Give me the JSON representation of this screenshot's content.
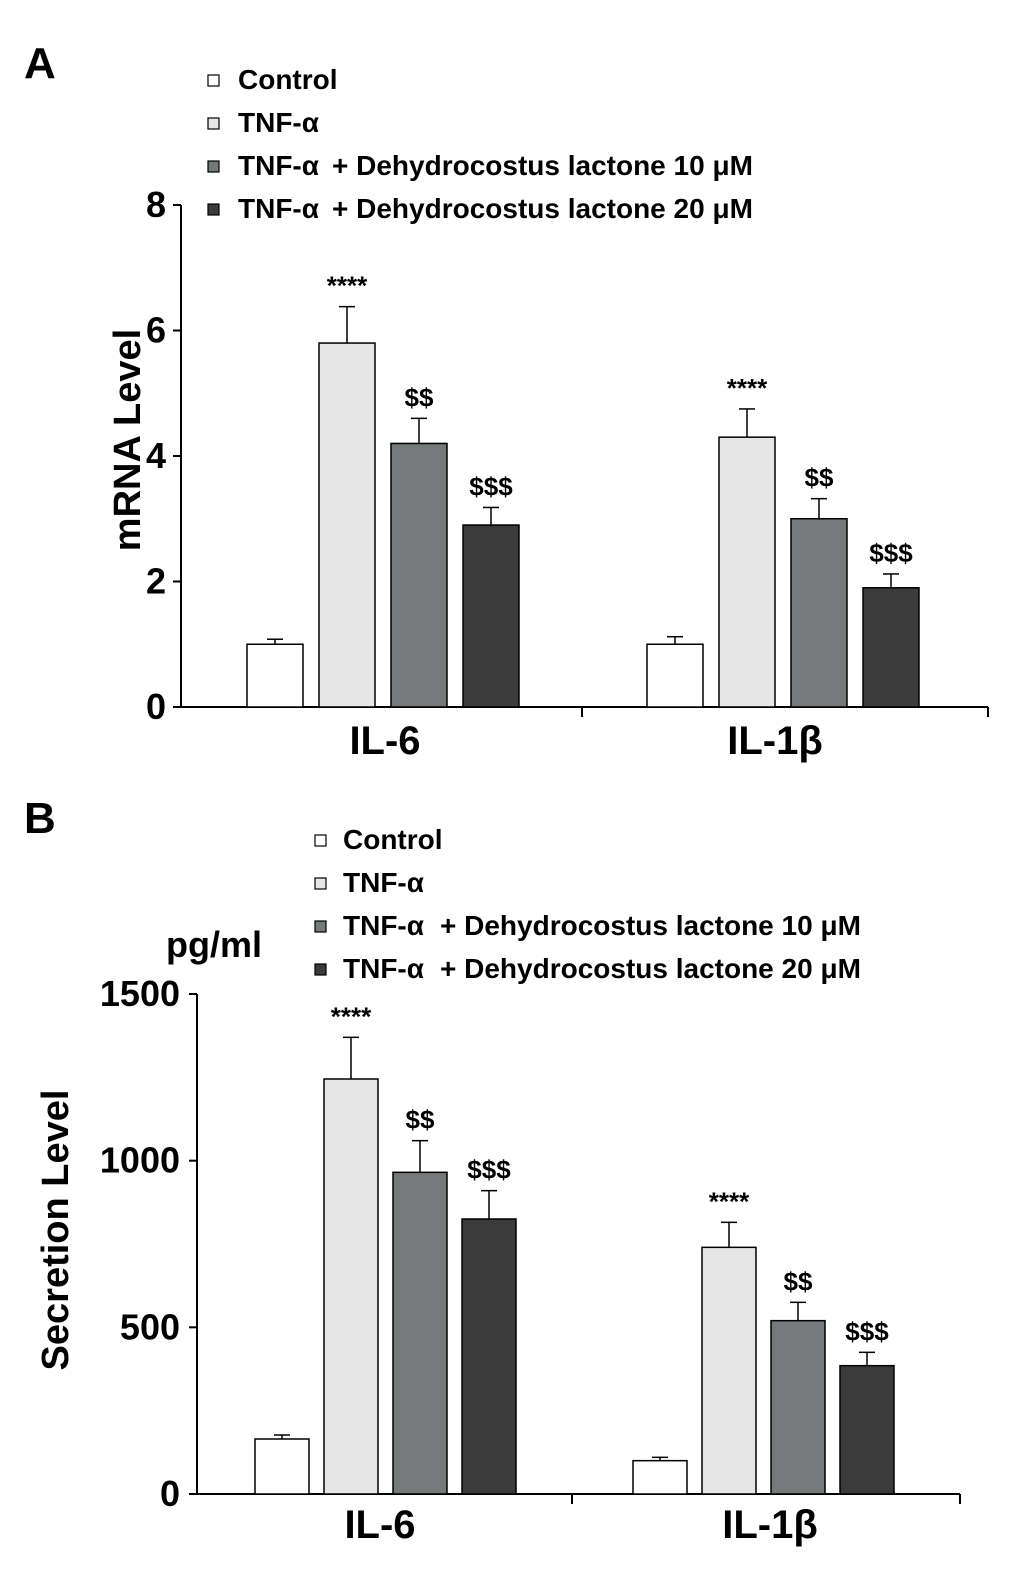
{
  "colors": {
    "Control": "#ffffff",
    "TNF-α": "#e6e6e6",
    "TNF-α + Dehydrocostus lactone 10 μM": "#76797a",
    "TNF-α + Dehydrocostus lactone 20 μM": "#3b3b3b"
  },
  "chart_data": [
    {
      "type": "bar",
      "panel_label": "A",
      "ylabel": "mRNA Level",
      "unit_label": "",
      "ylim": [
        0,
        8
      ],
      "yticks": [
        0,
        2,
        4,
        6,
        8
      ],
      "ytick_labels": [
        "0",
        "2",
        "4",
        "6",
        "8"
      ],
      "categories": [
        "IL-6",
        "IL-1β"
      ],
      "legend": [
        {
          "prefix": "Control",
          "suffix": ""
        },
        {
          "prefix": "TNF-α",
          "suffix": ""
        },
        {
          "prefix": "TNF-α",
          "suffix": "+ Dehydrocostus lactone 10 μM"
        },
        {
          "prefix": "TNF-α",
          "suffix": "+ Dehydrocostus lactone 20 μM"
        }
      ],
      "series": [
        {
          "name": "Control",
          "values": [
            1.0,
            1.0
          ],
          "errors": [
            0.08,
            0.12
          ],
          "annotations": [
            "",
            ""
          ]
        },
        {
          "name": "TNF-α",
          "values": [
            5.8,
            4.3
          ],
          "errors": [
            0.58,
            0.45
          ],
          "annotations": [
            "****",
            "****"
          ]
        },
        {
          "name": "TNF-α + Dehydrocostus lactone 10 μM",
          "values": [
            4.2,
            3.0
          ],
          "errors": [
            0.4,
            0.32
          ],
          "annotations": [
            "$$",
            "$$"
          ]
        },
        {
          "name": "TNF-α + Dehydrocostus lactone 20 μM",
          "values": [
            2.9,
            1.9
          ],
          "errors": [
            0.28,
            0.22
          ],
          "annotations": [
            "$$$",
            "$$$"
          ]
        }
      ]
    },
    {
      "type": "bar",
      "panel_label": "B",
      "ylabel": "Secretion Level",
      "unit_label": "pg/ml",
      "ylim": [
        0,
        1500
      ],
      "yticks": [
        0,
        500,
        1000,
        1500
      ],
      "ytick_labels": [
        "0",
        "500",
        "1000",
        "1500"
      ],
      "categories": [
        "IL-6",
        "IL-1β"
      ],
      "legend": [
        {
          "prefix": "Control",
          "suffix": ""
        },
        {
          "prefix": "TNF-α",
          "suffix": ""
        },
        {
          "prefix": "TNF-α",
          "suffix": "+ Dehydrocostus lactone 10 μM"
        },
        {
          "prefix": "TNF-α",
          "suffix": "+ Dehydrocostus lactone 20 μM"
        }
      ],
      "series": [
        {
          "name": "Control",
          "values": [
            165,
            100
          ],
          "errors": [
            12,
            10
          ],
          "annotations": [
            "",
            ""
          ]
        },
        {
          "name": "TNF-α",
          "values": [
            1245,
            740
          ],
          "errors": [
            125,
            75
          ],
          "annotations": [
            "****",
            "****"
          ]
        },
        {
          "name": "TNF-α + Dehydrocostus lactone 10 μM",
          "values": [
            965,
            520
          ],
          "errors": [
            95,
            55
          ],
          "annotations": [
            "$$",
            "$$"
          ]
        },
        {
          "name": "TNF-α + Dehydrocostus lactone 20 μM",
          "values": [
            825,
            385
          ],
          "errors": [
            85,
            40
          ],
          "annotations": [
            "$$$",
            "$$$"
          ]
        }
      ]
    }
  ]
}
